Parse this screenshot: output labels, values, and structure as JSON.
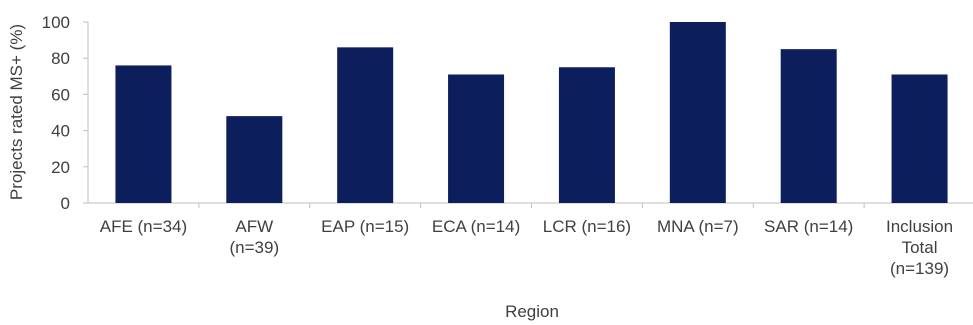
{
  "chart_data": {
    "type": "bar",
    "title": "",
    "xlabel": "Region",
    "ylabel": "Projects rated MS+ (%)",
    "ylim": [
      0,
      100
    ],
    "yticks": [
      "0",
      "20",
      "40",
      "60",
      "80",
      "100"
    ],
    "grid": false,
    "categories": [
      [
        "AFE (n=34)"
      ],
      [
        "AFW",
        "(n=39)"
      ],
      [
        "EAP (n=15)"
      ],
      [
        "ECA (n=14)"
      ],
      [
        "LCR (n=16)"
      ],
      [
        "MNA (n=7)"
      ],
      [
        "SAR (n=14)"
      ],
      [
        "Inclusion",
        "Total",
        "(n=139)"
      ]
    ],
    "values": [
      76,
      48,
      86,
      71,
      75,
      100,
      85,
      71
    ],
    "colors": {
      "bar": "#0c1f5c",
      "axis": "#bfbfbf",
      "text": "#404040"
    }
  }
}
